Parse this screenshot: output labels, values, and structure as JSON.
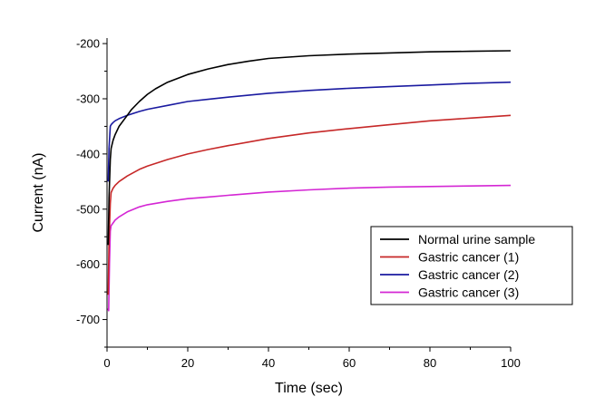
{
  "chart_data": {
    "type": "line",
    "title": "",
    "xlabel": "Time (sec)",
    "ylabel": "Current (nA)",
    "xlim": [
      0,
      100
    ],
    "ylim": [
      -750,
      -190
    ],
    "x_ticks": [
      0,
      20,
      40,
      60,
      80,
      100
    ],
    "y_ticks": [
      -200,
      -300,
      -400,
      -500,
      -600,
      -700
    ],
    "grid": false,
    "legend_position": "lower-right",
    "series": [
      {
        "name": "Normal urine sample",
        "color": "#000000",
        "x": [
          0.3,
          0.5,
          0.8,
          1,
          1.5,
          2,
          3,
          4,
          5,
          6,
          8,
          10,
          12,
          15,
          20,
          25,
          30,
          35,
          40,
          50,
          60,
          70,
          80,
          90,
          100
        ],
        "y": [
          -565,
          -480,
          -410,
          -390,
          -375,
          -365,
          -350,
          -340,
          -330,
          -320,
          -305,
          -292,
          -282,
          -270,
          -256,
          -246,
          -238,
          -232,
          -227,
          -222,
          -219,
          -217,
          -215,
          -214,
          -213
        ]
      },
      {
        "name": "Gastric cancer (1)",
        "color": "#c62828",
        "x": [
          0.3,
          0.5,
          0.8,
          1,
          1.5,
          2,
          3,
          5,
          8,
          10,
          15,
          20,
          25,
          30,
          40,
          50,
          60,
          70,
          80,
          90,
          100
        ],
        "y": [
          -655,
          -560,
          -490,
          -470,
          -462,
          -457,
          -450,
          -440,
          -428,
          -422,
          -410,
          -400,
          -392,
          -385,
          -372,
          -362,
          -354,
          -347,
          -340,
          -335,
          -330
        ]
      },
      {
        "name": "Gastric cancer (2)",
        "color": "#1a1aa0",
        "x": [
          0.3,
          0.5,
          0.8,
          1,
          1.5,
          2,
          3,
          5,
          8,
          10,
          15,
          20,
          25,
          30,
          40,
          50,
          60,
          70,
          80,
          90,
          100
        ],
        "y": [
          -450,
          -390,
          -350,
          -347,
          -343,
          -340,
          -336,
          -330,
          -323,
          -319,
          -312,
          -305,
          -301,
          -297,
          -290,
          -285,
          -281,
          -278,
          -275,
          -272,
          -270
        ]
      },
      {
        "name": "Gastric cancer (3)",
        "color": "#d426d4",
        "x": [
          0.2,
          0.4,
          0.6,
          0.8,
          1,
          1.5,
          2,
          3,
          5,
          8,
          10,
          15,
          20,
          25,
          30,
          40,
          50,
          60,
          70,
          80,
          90,
          100
        ],
        "y": [
          -680,
          -684,
          -600,
          -540,
          -530,
          -525,
          -520,
          -514,
          -505,
          -496,
          -492,
          -486,
          -481,
          -478,
          -475,
          -469,
          -465,
          -462,
          -460,
          -459,
          -458,
          -457
        ]
      }
    ]
  }
}
